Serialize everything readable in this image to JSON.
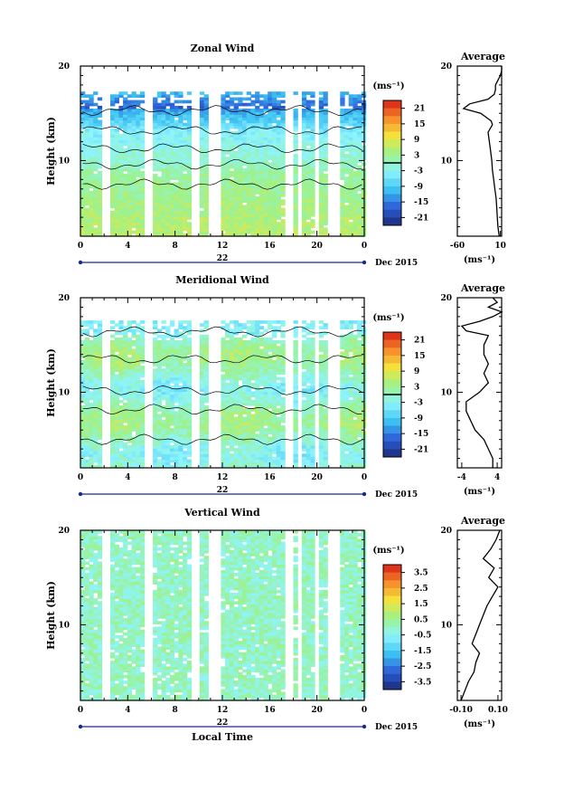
{
  "chart_data": [
    {
      "type": "heatmap",
      "title": "Zonal Wind",
      "ylabel": "Height (km)",
      "x_ticks": [
        "0",
        "4",
        "8",
        "12",
        "16",
        "20",
        "0"
      ],
      "y_ticks": [
        "20",
        "10"
      ],
      "xlim": [
        0,
        24
      ],
      "ylim": [
        2,
        20
      ],
      "date_day": "22",
      "date_label": "Dec 2015",
      "colorbar": {
        "unit": "(ms⁻¹)",
        "ticks": [
          "21",
          "15",
          "9",
          "3",
          "-3",
          "-9",
          "-15",
          "-21"
        ],
        "range": [
          -24,
          24
        ],
        "contour_level": 0
      },
      "gaps_hours": [
        [
          2.0,
          2.4
        ],
        [
          5.6,
          5.9
        ],
        [
          9.6,
          9.9
        ],
        [
          10.8,
          11.0
        ],
        [
          11.5,
          11.8
        ],
        [
          17.6,
          17.8
        ],
        [
          18.4,
          18.6
        ],
        [
          19.8,
          20.0
        ],
        [
          21.1,
          21.8
        ]
      ],
      "profile": {
        "title": "Average",
        "unit": "(ms⁻¹)",
        "x_ticks": [
          "-60",
          "10"
        ],
        "x_tick_values": [
          -60,
          10
        ],
        "xlim": [
          -60,
          12
        ],
        "y_ticks": [
          "20",
          "10"
        ],
        "heights_km": [
          2,
          3,
          4,
          5,
          6,
          7,
          8,
          9,
          10,
          11,
          12,
          13,
          13.8,
          14.2,
          15,
          15.5,
          16,
          16.5,
          17,
          17.5,
          18,
          18.5,
          19,
          19.5,
          20
        ],
        "values": [
          8,
          6,
          5,
          4,
          3,
          1,
          -1,
          -3,
          -4,
          -6,
          -8,
          -10,
          -3,
          -5,
          -22,
          -50,
          -40,
          -10,
          0,
          2,
          2,
          6,
          10,
          12,
          12
        ]
      }
    },
    {
      "type": "heatmap",
      "title": "Meridional Wind",
      "ylabel": "Height (km)",
      "x_ticks": [
        "0",
        "4",
        "8",
        "12",
        "16",
        "20",
        "0"
      ],
      "y_ticks": [
        "20",
        "10"
      ],
      "xlim": [
        0,
        24
      ],
      "ylim": [
        2,
        20
      ],
      "date_day": "22",
      "date_label": "Dec 2015",
      "colorbar": {
        "unit": "(ms⁻¹)",
        "ticks": [
          "21",
          "15",
          "9",
          "3",
          "-3",
          "-9",
          "-15",
          "-21"
        ],
        "range": [
          -24,
          24
        ],
        "contour_level": 0
      },
      "gaps_hours": [
        [
          2.0,
          2.4
        ],
        [
          5.6,
          5.9
        ],
        [
          9.6,
          9.9
        ],
        [
          10.8,
          11.0
        ],
        [
          11.5,
          11.8
        ],
        [
          17.6,
          17.8
        ],
        [
          18.4,
          18.6
        ],
        [
          19.8,
          20.0
        ],
        [
          21.1,
          21.8
        ]
      ],
      "profile": {
        "title": "Average",
        "unit": "(ms⁻¹)",
        "x_ticks": [
          "-4",
          "4"
        ],
        "x_tick_values": [
          -4,
          4
        ],
        "xlim": [
          -5,
          5
        ],
        "y_ticks": [
          "20",
          "10"
        ],
        "heights_km": [
          2,
          3,
          4,
          5,
          6,
          7,
          8,
          9,
          10,
          11,
          12,
          13,
          14,
          15,
          16,
          16.5,
          17,
          17.5,
          18,
          18.5,
          19,
          19.5,
          20
        ],
        "values": [
          3,
          3,
          2,
          1,
          -1,
          -2,
          -3,
          -3,
          0,
          2,
          1,
          2,
          1,
          1,
          2,
          -3,
          -4,
          0,
          3,
          5,
          2,
          4,
          3
        ]
      }
    },
    {
      "type": "heatmap",
      "title": "Vertical Wind",
      "ylabel": "Height (km)",
      "xlabel": "Local Time",
      "x_ticks": [
        "0",
        "4",
        "8",
        "12",
        "16",
        "20",
        "0"
      ],
      "y_ticks": [
        "20",
        "10"
      ],
      "xlim": [
        0,
        24
      ],
      "ylim": [
        2,
        20
      ],
      "date_day": "22",
      "date_label": "Dec 2015",
      "colorbar": {
        "unit": "(ms⁻¹)",
        "ticks": [
          "3.5",
          "2.5",
          "1.5",
          "0.5",
          "-0.5",
          "-1.5",
          "-2.5",
          "-3.5"
        ],
        "range": [
          -4,
          4
        ]
      },
      "gaps_hours": [
        [
          2.0,
          2.4
        ],
        [
          5.6,
          5.9
        ],
        [
          9.6,
          9.9
        ],
        [
          10.8,
          11.0
        ],
        [
          11.5,
          11.8
        ],
        [
          17.6,
          17.8
        ],
        [
          18.4,
          18.6
        ],
        [
          19.8,
          20.0
        ],
        [
          21.1,
          21.8
        ]
      ],
      "profile": {
        "title": "Average",
        "unit": "(ms⁻¹)",
        "x_ticks": [
          "-0.10",
          "0.10"
        ],
        "x_tick_values": [
          -0.1,
          0.1
        ],
        "xlim": [
          -0.12,
          0.12
        ],
        "y_ticks": [
          "20",
          "10"
        ],
        "heights_km": [
          2,
          3,
          4,
          5,
          6,
          7,
          8,
          9,
          10,
          11,
          12,
          13,
          14,
          15,
          16,
          17,
          18,
          19,
          20
        ],
        "values": [
          -0.1,
          -0.08,
          -0.06,
          -0.03,
          -0.02,
          0.0,
          -0.04,
          -0.02,
          0.0,
          0.02,
          0.04,
          0.07,
          0.1,
          0.05,
          0.08,
          0.02,
          0.06,
          0.09,
          0.11
        ]
      }
    }
  ]
}
